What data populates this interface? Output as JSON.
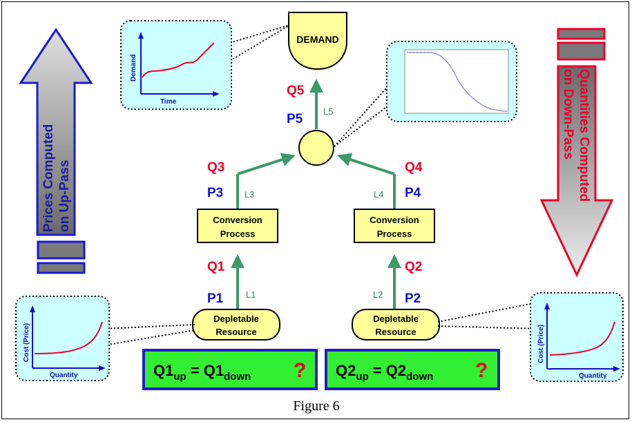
{
  "demand": {
    "label": "DEMAND"
  },
  "demand_chart": {
    "xlabel": "Time",
    "ylabel": "Demand"
  },
  "conversion_left": {
    "line1": "Conversion",
    "line2": "Process"
  },
  "conversion_right": {
    "line1": "Conversion",
    "line2": "Process"
  },
  "resource_left": {
    "line1": "Depletable",
    "line2": "Resource"
  },
  "resource_right": {
    "line1": "Depletable",
    "line2": "Resource"
  },
  "cost_chart_left": {
    "xlabel": "Quantity",
    "ylabel": "Cost (Price)"
  },
  "cost_chart_right": {
    "xlabel": "Quantity",
    "ylabel": "Cost (Price)"
  },
  "labels": {
    "q1": "Q1",
    "p1": "P1",
    "l1": "L1",
    "q2": "Q2",
    "p2": "P2",
    "l2": "L2",
    "q3": "Q3",
    "p3": "P3",
    "l3": "L3",
    "q4": "Q4",
    "p4": "P4",
    "l4": "L4",
    "q5": "Q5",
    "p5": "P5",
    "l5": "L5"
  },
  "equation_left": {
    "base1": "Q1",
    "sub1": "up",
    "eq": " = ",
    "base2": "Q1",
    "sub2": "down",
    "mark": "?"
  },
  "equation_right": {
    "base1": "Q2",
    "sub1": "up",
    "eq": " = ",
    "base2": "Q2",
    "sub2": "down",
    "mark": "?"
  },
  "left_arrow": {
    "line1": "Prices Computed",
    "line2": "on Up-Pass"
  },
  "right_arrow": {
    "line1": "Quantities Computed",
    "line2": "on Down-Pass"
  },
  "caption": "Figure 6",
  "colors": {
    "box_fill": "#ffff99",
    "chart_fill": "#ccffff",
    "equation_fill": "#33ee33",
    "equation_border": "#2020c0",
    "arrow_green": "#3a9a6a",
    "q_red": "#e8002a",
    "p_blue": "#1010d0"
  }
}
